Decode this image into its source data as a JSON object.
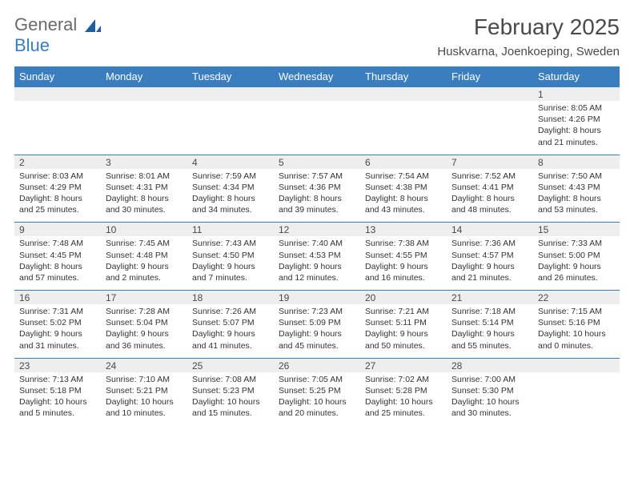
{
  "logo": {
    "word1": "General",
    "word2": "Blue",
    "word1_color": "#6a6a6a",
    "word2_color": "#3a7ebf",
    "sail_color": "#1f5f9e"
  },
  "title": "February 2025",
  "location": "Huskvarna, Joenkoeping, Sweden",
  "colors": {
    "header_bg": "#3a7ebf",
    "header_text": "#ffffff",
    "daynum_bg": "#eeeeee",
    "cell_border": "#3a7ebf",
    "body_text": "#333333"
  },
  "weekdays": [
    "Sunday",
    "Monday",
    "Tuesday",
    "Wednesday",
    "Thursday",
    "Friday",
    "Saturday"
  ],
  "weeks": [
    [
      {
        "day": "",
        "lines": []
      },
      {
        "day": "",
        "lines": []
      },
      {
        "day": "",
        "lines": []
      },
      {
        "day": "",
        "lines": []
      },
      {
        "day": "",
        "lines": []
      },
      {
        "day": "",
        "lines": []
      },
      {
        "day": "1",
        "lines": [
          "Sunrise: 8:05 AM",
          "Sunset: 4:26 PM",
          "Daylight: 8 hours and 21 minutes."
        ]
      }
    ],
    [
      {
        "day": "2",
        "lines": [
          "Sunrise: 8:03 AM",
          "Sunset: 4:29 PM",
          "Daylight: 8 hours and 25 minutes."
        ]
      },
      {
        "day": "3",
        "lines": [
          "Sunrise: 8:01 AM",
          "Sunset: 4:31 PM",
          "Daylight: 8 hours and 30 minutes."
        ]
      },
      {
        "day": "4",
        "lines": [
          "Sunrise: 7:59 AM",
          "Sunset: 4:34 PM",
          "Daylight: 8 hours and 34 minutes."
        ]
      },
      {
        "day": "5",
        "lines": [
          "Sunrise: 7:57 AM",
          "Sunset: 4:36 PM",
          "Daylight: 8 hours and 39 minutes."
        ]
      },
      {
        "day": "6",
        "lines": [
          "Sunrise: 7:54 AM",
          "Sunset: 4:38 PM",
          "Daylight: 8 hours and 43 minutes."
        ]
      },
      {
        "day": "7",
        "lines": [
          "Sunrise: 7:52 AM",
          "Sunset: 4:41 PM",
          "Daylight: 8 hours and 48 minutes."
        ]
      },
      {
        "day": "8",
        "lines": [
          "Sunrise: 7:50 AM",
          "Sunset: 4:43 PM",
          "Daylight: 8 hours and 53 minutes."
        ]
      }
    ],
    [
      {
        "day": "9",
        "lines": [
          "Sunrise: 7:48 AM",
          "Sunset: 4:45 PM",
          "Daylight: 8 hours and 57 minutes."
        ]
      },
      {
        "day": "10",
        "lines": [
          "Sunrise: 7:45 AM",
          "Sunset: 4:48 PM",
          "Daylight: 9 hours and 2 minutes."
        ]
      },
      {
        "day": "11",
        "lines": [
          "Sunrise: 7:43 AM",
          "Sunset: 4:50 PM",
          "Daylight: 9 hours and 7 minutes."
        ]
      },
      {
        "day": "12",
        "lines": [
          "Sunrise: 7:40 AM",
          "Sunset: 4:53 PM",
          "Daylight: 9 hours and 12 minutes."
        ]
      },
      {
        "day": "13",
        "lines": [
          "Sunrise: 7:38 AM",
          "Sunset: 4:55 PM",
          "Daylight: 9 hours and 16 minutes."
        ]
      },
      {
        "day": "14",
        "lines": [
          "Sunrise: 7:36 AM",
          "Sunset: 4:57 PM",
          "Daylight: 9 hours and 21 minutes."
        ]
      },
      {
        "day": "15",
        "lines": [
          "Sunrise: 7:33 AM",
          "Sunset: 5:00 PM",
          "Daylight: 9 hours and 26 minutes."
        ]
      }
    ],
    [
      {
        "day": "16",
        "lines": [
          "Sunrise: 7:31 AM",
          "Sunset: 5:02 PM",
          "Daylight: 9 hours and 31 minutes."
        ]
      },
      {
        "day": "17",
        "lines": [
          "Sunrise: 7:28 AM",
          "Sunset: 5:04 PM",
          "Daylight: 9 hours and 36 minutes."
        ]
      },
      {
        "day": "18",
        "lines": [
          "Sunrise: 7:26 AM",
          "Sunset: 5:07 PM",
          "Daylight: 9 hours and 41 minutes."
        ]
      },
      {
        "day": "19",
        "lines": [
          "Sunrise: 7:23 AM",
          "Sunset: 5:09 PM",
          "Daylight: 9 hours and 45 minutes."
        ]
      },
      {
        "day": "20",
        "lines": [
          "Sunrise: 7:21 AM",
          "Sunset: 5:11 PM",
          "Daylight: 9 hours and 50 minutes."
        ]
      },
      {
        "day": "21",
        "lines": [
          "Sunrise: 7:18 AM",
          "Sunset: 5:14 PM",
          "Daylight: 9 hours and 55 minutes."
        ]
      },
      {
        "day": "22",
        "lines": [
          "Sunrise: 7:15 AM",
          "Sunset: 5:16 PM",
          "Daylight: 10 hours and 0 minutes."
        ]
      }
    ],
    [
      {
        "day": "23",
        "lines": [
          "Sunrise: 7:13 AM",
          "Sunset: 5:18 PM",
          "Daylight: 10 hours and 5 minutes."
        ]
      },
      {
        "day": "24",
        "lines": [
          "Sunrise: 7:10 AM",
          "Sunset: 5:21 PM",
          "Daylight: 10 hours and 10 minutes."
        ]
      },
      {
        "day": "25",
        "lines": [
          "Sunrise: 7:08 AM",
          "Sunset: 5:23 PM",
          "Daylight: 10 hours and 15 minutes."
        ]
      },
      {
        "day": "26",
        "lines": [
          "Sunrise: 7:05 AM",
          "Sunset: 5:25 PM",
          "Daylight: 10 hours and 20 minutes."
        ]
      },
      {
        "day": "27",
        "lines": [
          "Sunrise: 7:02 AM",
          "Sunset: 5:28 PM",
          "Daylight: 10 hours and 25 minutes."
        ]
      },
      {
        "day": "28",
        "lines": [
          "Sunrise: 7:00 AM",
          "Sunset: 5:30 PM",
          "Daylight: 10 hours and 30 minutes."
        ]
      },
      {
        "day": "",
        "lines": []
      }
    ]
  ]
}
